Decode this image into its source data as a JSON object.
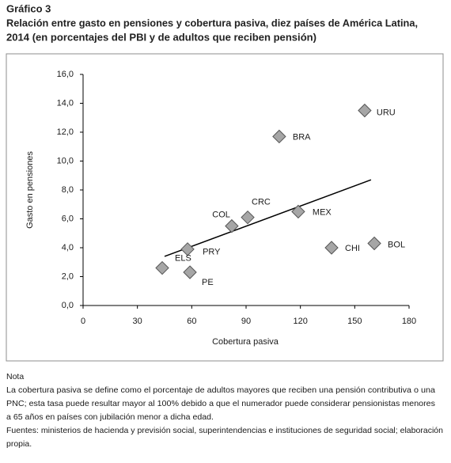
{
  "chart_data": {
    "type": "scatter",
    "title": "Gráfico 3",
    "subtitle": [
      "Relación entre gasto en pensiones y cobertura pasiva, diez países de América Latina,",
      "2014 (en porcentajes del PBI y de adultos que reciben pensión)"
    ],
    "xlabel": "Cobertura pasiva",
    "ylabel": "Gasto en pensiones",
    "point_labels": [
      "URU",
      "BRA",
      "CRC",
      "COL",
      "MEX",
      "CHI",
      "BOL",
      "PRY",
      "ELS",
      "PE"
    ],
    "x": [
      155.5,
      108.3,
      90.9,
      82.1,
      118.8,
      137.2,
      160.8,
      57.7,
      43.7,
      59
    ],
    "values": [
      13.5,
      11.7,
      6.1,
      5.5,
      6.5,
      4.0,
      4.3,
      3.9,
      2.6,
      2.3
    ],
    "color": "#a6a6a6",
    "trendline": {
      "x": [
        45,
        159
      ],
      "y": [
        3.4,
        8.7
      ]
    },
    "xlim": [
      0,
      180
    ],
    "xticks": [
      0,
      30,
      60,
      90,
      120,
      150,
      180
    ],
    "ylim": [
      0,
      16
    ],
    "yticks": [
      {
        "value": 0,
        "label": "0,0"
      },
      {
        "value": 2,
        "label": "2,0"
      },
      {
        "value": 4,
        "label": "4,0"
      },
      {
        "value": 6,
        "label": "6,0"
      },
      {
        "value": 8,
        "label": "8,0"
      },
      {
        "value": 10,
        "label": "10,0"
      },
      {
        "value": 12,
        "label": "12,0"
      },
      {
        "value": 14,
        "label": "14,0"
      },
      {
        "value": 16,
        "label": "16,0"
      }
    ],
    "grid": false
  },
  "note": {
    "heading": "Nota",
    "lines": [
      "La cobertura pasiva se define como el porcentaje de adultos mayores que reciben una pensión contributiva o una",
      "PNC; esta tasa puede resultar mayor al 100% debido a que el numerador puede considerar pensionistas menores",
      "a 65 años en países con jubilación menor a dicha edad.",
      "Fuentes: ministerios de hacienda y previsión social, superintendencias e instituciones de seguridad social; elaboración",
      "propia."
    ]
  }
}
